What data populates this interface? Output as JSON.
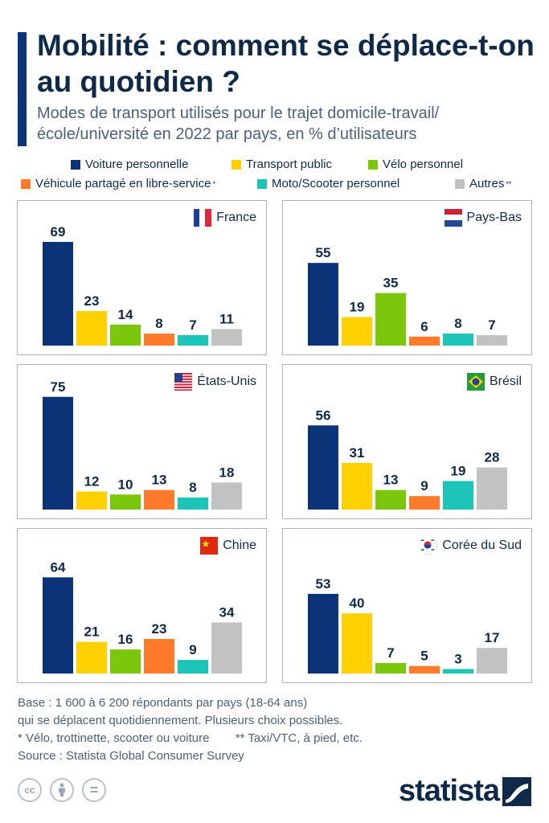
{
  "title": "Mobilité : comment se déplace-t-on au quotidien ?",
  "subtitle": "Modes de transport utilisés pour le trajet domicile-travail/ école/université en 2022 par pays, en % d’utilisateurs",
  "legend": [
    {
      "label": "Voiture personnelle",
      "mark": "",
      "color": "#0b3478"
    },
    {
      "label": "Transport public",
      "mark": "",
      "color": "#ffd100"
    },
    {
      "label": "Vélo personnel",
      "mark": "",
      "color": "#7ac70c"
    },
    {
      "label": "Véhicule partagé en libre-service",
      "mark": "*",
      "color": "#ff7a2b"
    },
    {
      "label": "Moto/Scooter personnel",
      "mark": "",
      "color": "#1cc5b7"
    },
    {
      "label": "Autres",
      "mark": "**",
      "color": "#c2c2c2"
    }
  ],
  "chart_data": [
    {
      "type": "bar",
      "country": "France",
      "flag": "france-flag-icon",
      "categories": [
        "Voiture personnelle",
        "Transport public",
        "Vélo personnel",
        "Véhicule partagé en libre-service",
        "Moto/Scooter personnel",
        "Autres"
      ],
      "values": [
        69,
        23,
        14,
        8,
        7,
        11
      ],
      "ylim": [
        0,
        80
      ]
    },
    {
      "type": "bar",
      "country": "Pays-Bas",
      "flag": "netherlands-flag-icon",
      "categories": [
        "Voiture personnelle",
        "Transport public",
        "Vélo personnel",
        "Véhicule partagé en libre-service",
        "Moto/Scooter personnel",
        "Autres"
      ],
      "values": [
        55,
        19,
        35,
        6,
        8,
        7
      ],
      "ylim": [
        0,
        80
      ]
    },
    {
      "type": "bar",
      "country": "États-Unis",
      "flag": "usa-flag-icon",
      "categories": [
        "Voiture personnelle",
        "Transport public",
        "Vélo personnel",
        "Véhicule partagé en libre-service",
        "Moto/Scooter personnel",
        "Autres"
      ],
      "values": [
        75,
        12,
        10,
        13,
        8,
        18
      ],
      "ylim": [
        0,
        80
      ]
    },
    {
      "type": "bar",
      "country": "Brésil",
      "flag": "brazil-flag-icon",
      "categories": [
        "Voiture personnelle",
        "Transport public",
        "Vélo personnel",
        "Véhicule partagé en libre-service",
        "Moto/Scooter personnel",
        "Autres"
      ],
      "values": [
        56,
        31,
        13,
        9,
        19,
        28
      ],
      "ylim": [
        0,
        80
      ]
    },
    {
      "type": "bar",
      "country": "Chine",
      "flag": "china-flag-icon",
      "categories": [
        "Voiture personnelle",
        "Transport public",
        "Vélo personnel",
        "Véhicule partagé en libre-service",
        "Moto/Scooter personnel",
        "Autres"
      ],
      "values": [
        64,
        21,
        16,
        23,
        9,
        34
      ],
      "ylim": [
        0,
        80
      ]
    },
    {
      "type": "bar",
      "country": "Corée du Sud",
      "flag": "south-korea-flag-icon",
      "categories": [
        "Voiture personnelle",
        "Transport public",
        "Vélo personnel",
        "Véhicule partagé en libre-service",
        "Moto/Scooter personnel",
        "Autres"
      ],
      "values": [
        53,
        40,
        7,
        5,
        3,
        17
      ],
      "ylim": [
        0,
        80
      ]
    }
  ],
  "footnotes": {
    "base_line1": "Base : 1 600 à 6 200 répondants par pays (18-64 ans)",
    "base_line2": "qui se déplacent quotidiennement. Plusieurs choix possibles.",
    "note_star": "* Vélo, trottinette, scooter ou voiture",
    "note_double_star": "** Taxi/VTC, à pied, etc.",
    "source": "Source : Statista Global Consumer Survey"
  },
  "license_icons": {
    "cc": "cc",
    "equals": "="
  },
  "brand": {
    "name": "statista",
    "icon": "statista-logo-icon"
  }
}
